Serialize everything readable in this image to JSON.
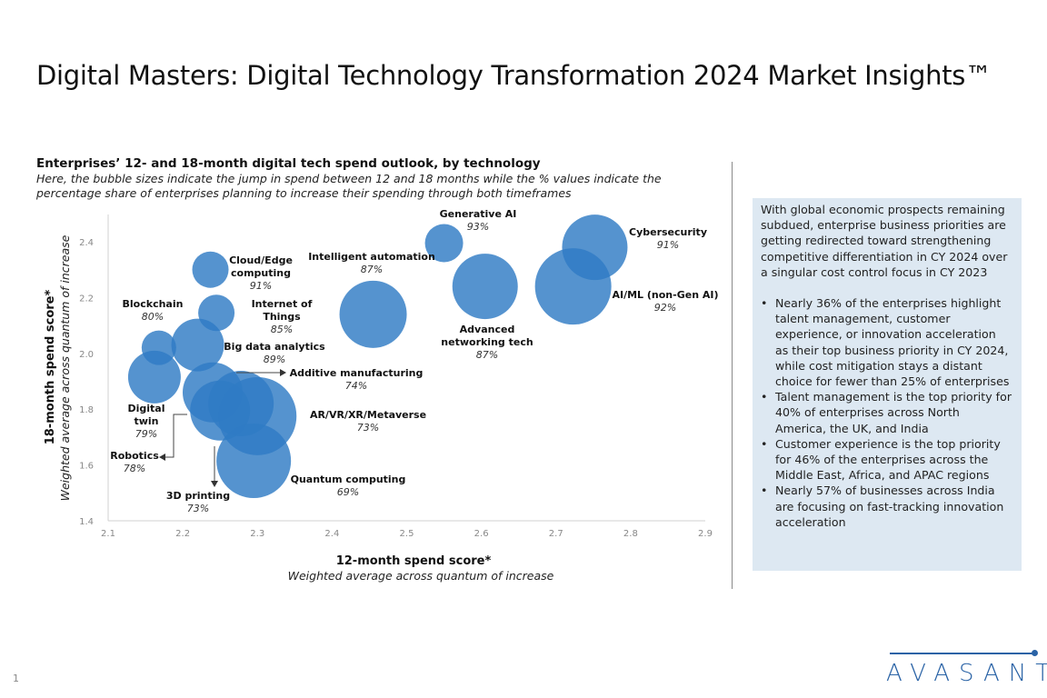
{
  "page": {
    "title": "Digital Masters: Digital Technology Transformation 2024 Market Insights™",
    "page_number": "1",
    "logo_text": "AVASANT",
    "brand_color": "#2a63a6"
  },
  "insights": {
    "intro": "With global economic prospects remaining subdued, enterprise business priorities are getting redirected toward strengthening competitive differentiation in CY 2024 over a singular cost control focus in CY 2023",
    "bullets": [
      "Nearly 36% of the enterprises highlight talent management, customer experience, or innovation acceleration as their top business priority in CY 2024, while cost mitigation stays a distant choice for fewer than 25% of enterprises",
      "Talent management is the top priority for 40% of enterprises across North America, the UK, and India",
      "Customer experience is the top priority for 46% of the enterprises across the Middle East, Africa, and APAC regions",
      "Nearly 57% of businesses across India are focusing on fast-tracking innovation acceleration"
    ]
  },
  "chart_data": {
    "type": "scatter",
    "subtype": "bubble",
    "title": "Enterprises’ 12- and 18-month digital tech spend outlook, by technology",
    "subtitle": "Here, the bubble sizes indicate the jump in spend between 12 and 18 months while the % values indicate the percentage share of enterprises planning to increase their spending through both timeframes",
    "xlabel": "12-month spend score*",
    "xlabel_sub": "Weighted average across quantum of increase",
    "ylabel": "18-month spend score*",
    "ylabel_sub": "Weighted average across quantum of increase",
    "xlim": [
      2.1,
      2.9
    ],
    "ylim": [
      1.4,
      2.5
    ],
    "x_ticks": [
      "2.1",
      "2.2",
      "2.3",
      "2.4",
      "2.5",
      "2.6",
      "2.7",
      "2.8",
      "2.9"
    ],
    "y_ticks": [
      "1.4",
      "1.6",
      "1.8",
      "2.0",
      "2.2",
      "2.4"
    ],
    "grid": false,
    "bubble_color": "#2f7bc4",
    "size_note": "relative bubble size (jump in spend between 12 and 18 months)",
    "points": [
      {
        "name": "Cloud/Edge computing",
        "label_lines": [
          "Cloud/Edge",
          "computing"
        ],
        "pct": "91%",
        "x": 2.237,
        "y": 2.3,
        "size": 20
      },
      {
        "name": "Internet of Things",
        "label_lines": [
          "Internet of",
          "Things"
        ],
        "pct": "85%",
        "x": 2.245,
        "y": 2.145,
        "size": 20
      },
      {
        "name": "Blockchain",
        "label_lines": [
          "Blockchain"
        ],
        "pct": "80%",
        "x": 2.168,
        "y": 2.02,
        "size": 19
      },
      {
        "name": "Big data analytics",
        "label_lines": [
          "Big data analytics"
        ],
        "pct": "89%",
        "x": 2.22,
        "y": 2.03,
        "size": 29
      },
      {
        "name": "Digital twin",
        "label_lines": [
          "Digital",
          "twin"
        ],
        "pct": "79%",
        "x": 2.162,
        "y": 1.915,
        "size": 29
      },
      {
        "name": "Additive manufacturing",
        "label_lines": [
          "Additive manufacturing"
        ],
        "pct": "74%",
        "x": 2.24,
        "y": 1.86,
        "size": 33
      },
      {
        "name": "Robotics",
        "label_lines": [
          "Robotics"
        ],
        "pct": "78%",
        "x": 2.25,
        "y": 1.795,
        "size": 33
      },
      {
        "name": "3D printing",
        "label_lines": [
          "3D printing"
        ],
        "pct": "73%",
        "x": 2.278,
        "y": 1.82,
        "size": 36
      },
      {
        "name": "AR/VR/XR/Metaverse",
        "label_lines": [
          "AR/VR/XR/Metaverse"
        ],
        "pct": "73%",
        "x": 2.3,
        "y": 1.775,
        "size": 43
      },
      {
        "name": "Quantum computing",
        "label_lines": [
          "Quantum computing"
        ],
        "pct": "69%",
        "x": 2.295,
        "y": 1.615,
        "size": 41
      },
      {
        "name": "Intelligent automation",
        "label_lines": [
          "Intelligent automation"
        ],
        "pct": "87%",
        "x": 2.455,
        "y": 2.14,
        "size": 37
      },
      {
        "name": "Generative AI",
        "label_lines": [
          "Generative AI"
        ],
        "pct": "93%",
        "x": 2.55,
        "y": 2.395,
        "size": 21
      },
      {
        "name": "Advanced networking tech",
        "label_lines": [
          "Advanced",
          "networking tech"
        ],
        "pct": "87%",
        "x": 2.605,
        "y": 2.24,
        "size": 36
      },
      {
        "name": "Cybersecurity",
        "label_lines": [
          "Cybersecurity"
        ],
        "pct": "91%",
        "x": 2.752,
        "y": 2.38,
        "size": 36
      },
      {
        "name": "AI/ML (non-Gen AI)",
        "label_lines": [
          "AI/ML (non-Gen AI)"
        ],
        "pct": "92%",
        "x": 2.723,
        "y": 2.24,
        "size": 42
      }
    ]
  }
}
